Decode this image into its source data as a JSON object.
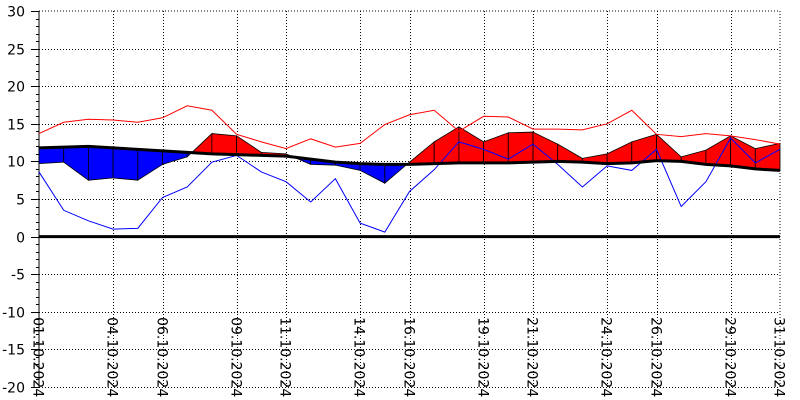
{
  "chart_data": {
    "type": "area",
    "ylim": [
      -20,
      30
    ],
    "yticks": [
      30,
      25,
      20,
      15,
      10,
      5,
      0,
      -5,
      -10,
      -15,
      -20
    ],
    "xlim": [
      "2024-10-01",
      "2024-10-31"
    ],
    "xticks": [
      "01.10.2024",
      "04.10.2024",
      "06.10.2024",
      "09.10.2024",
      "11.10.2024",
      "14.10.2024",
      "16.10.2024",
      "19.10.2024",
      "21.10.2024",
      "24.10.2024",
      "26.10.2024",
      "29.10.2024",
      "31.10.2024"
    ],
    "xtick_dates": [
      "2024-10-01",
      "2024-10-04",
      "2024-10-06",
      "2024-10-09",
      "2024-10-11",
      "2024-10-14",
      "2024-10-16",
      "2024-10-19",
      "2024-10-21",
      "2024-10-24",
      "2024-10-26",
      "2024-10-29",
      "2024-10-31"
    ],
    "x": [
      "2024-10-01",
      "2024-10-02",
      "2024-10-03",
      "2024-10-04",
      "2024-10-05",
      "2024-10-06",
      "2024-10-07",
      "2024-10-08",
      "2024-10-09",
      "2024-10-10",
      "2024-10-11",
      "2024-10-12",
      "2024-10-13",
      "2024-10-14",
      "2024-10-15",
      "2024-10-16",
      "2024-10-17",
      "2024-10-18",
      "2024-10-19",
      "2024-10-20",
      "2024-10-21",
      "2024-10-22",
      "2024-10-23",
      "2024-10-24",
      "2024-10-25",
      "2024-10-26",
      "2024-10-27",
      "2024-10-28",
      "2024-10-29",
      "2024-10-30",
      "2024-10-31"
    ],
    "series": [
      {
        "values": [
          11.8,
          11.9,
          12.0,
          11.8,
          11.6,
          11.4,
          11.2,
          11.0,
          10.9,
          10.8,
          10.7,
          10.3,
          9.9,
          9.7,
          9.6,
          9.6,
          9.7,
          9.8,
          9.8,
          9.8,
          9.9,
          10.0,
          9.9,
          9.7,
          9.8,
          10.1,
          10.0,
          9.6,
          9.4,
          9.0,
          8.8
        ]
      },
      {
        "values": [
          9.7,
          9.9,
          7.5,
          7.8,
          7.5,
          9.6,
          10.6,
          13.7,
          13.4,
          11.2,
          11.0,
          9.6,
          9.5,
          8.8,
          7.1,
          9.9,
          12.6,
          14.6,
          12.6,
          13.8,
          13.9,
          12.3,
          10.4,
          11.0,
          12.6,
          13.6,
          10.6,
          11.5,
          13.4,
          11.7,
          12.4
        ]
      },
      {
        "values": [
          13.7,
          15.2,
          15.6,
          15.5,
          15.2,
          15.8,
          17.4,
          16.8,
          13.6,
          12.6,
          11.7,
          13.0,
          11.9,
          12.4,
          14.9,
          16.2,
          16.8,
          14.0,
          16.0,
          15.9,
          14.3,
          14.3,
          14.2,
          15.0,
          16.8,
          13.6,
          13.3,
          13.7,
          13.4,
          12.9,
          12.3
        ]
      },
      {
        "values": [
          8.6,
          3.5,
          2.1,
          1.0,
          1.1,
          5.2,
          6.6,
          9.9,
          10.8,
          8.6,
          7.3,
          4.6,
          7.7,
          1.8,
          0.6,
          6.0,
          8.9,
          12.6,
          11.6,
          10.3,
          12.3,
          9.6,
          6.6,
          9.4,
          8.8,
          11.6,
          4.0,
          7.3,
          13.1,
          9.8,
          11.6
        ]
      }
    ],
    "colors": {
      "above": "#ff0000",
      "below": "#0000ff",
      "normal_line": "#000000",
      "zero_line": "#000000",
      "grid": "#000000"
    },
    "grid": true,
    "legend": "none"
  }
}
